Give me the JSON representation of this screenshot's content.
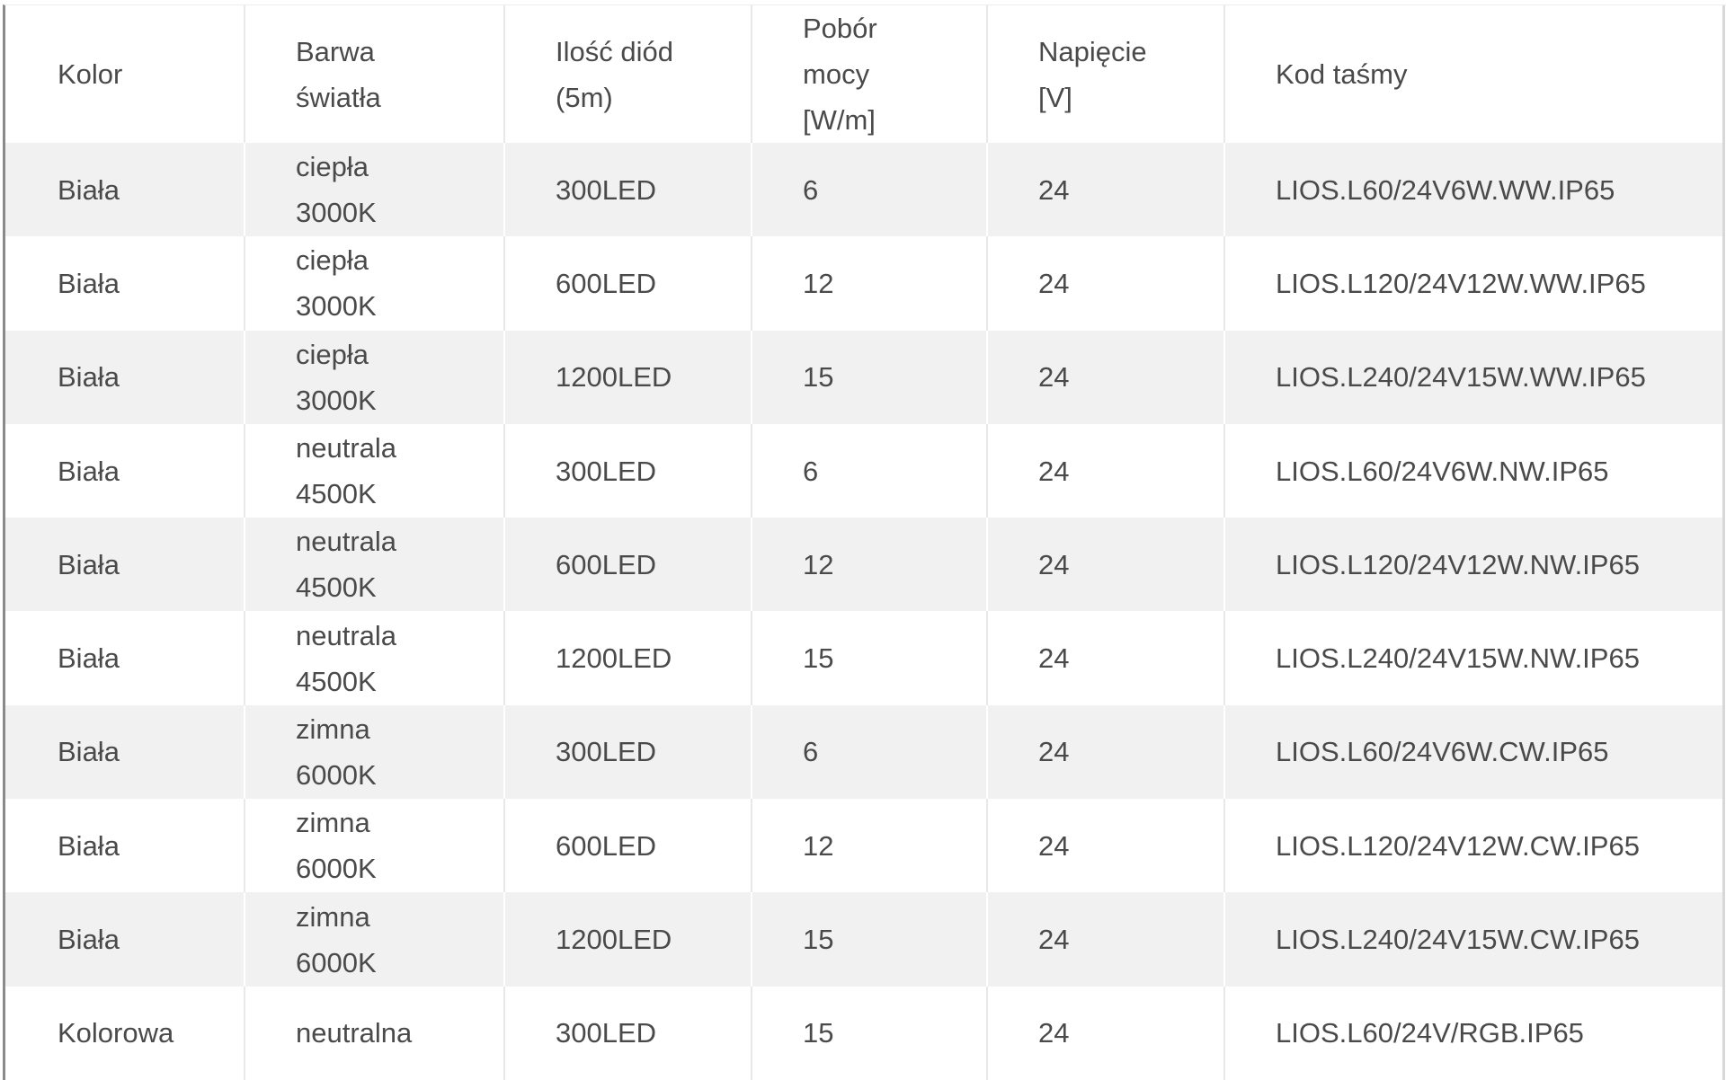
{
  "table": {
    "headers": [
      {
        "lines": [
          "Kolor"
        ]
      },
      {
        "lines": [
          "Barwa",
          "światła"
        ]
      },
      {
        "lines": [
          "Ilość diód",
          "(5m)"
        ]
      },
      {
        "lines": [
          "Pobór",
          "mocy",
          "[W/m]"
        ]
      },
      {
        "lines": [
          "Napięcie",
          "[V]"
        ]
      },
      {
        "lines": [
          "Kod taśmy"
        ]
      }
    ],
    "rows": [
      {
        "kolor": "Biała",
        "barwa": [
          "ciepła",
          "3000K"
        ],
        "diody": "300LED",
        "moc": "6",
        "napiecie": "24",
        "kod": "LIOS.L60/24V6W.WW.IP65"
      },
      {
        "kolor": "Biała",
        "barwa": [
          "ciepła",
          "3000K"
        ],
        "diody": "600LED",
        "moc": "12",
        "napiecie": "24",
        "kod": "LIOS.L120/24V12W.WW.IP65"
      },
      {
        "kolor": "Biała",
        "barwa": [
          "ciepła",
          "3000K"
        ],
        "diody": "1200LED",
        "moc": "15",
        "napiecie": "24",
        "kod": "LIOS.L240/24V15W.WW.IP65"
      },
      {
        "kolor": "Biała",
        "barwa": [
          "neutrala",
          "4500K"
        ],
        "diody": "300LED",
        "moc": "6",
        "napiecie": "24",
        "kod": "LIOS.L60/24V6W.NW.IP65"
      },
      {
        "kolor": "Biała",
        "barwa": [
          "neutrala",
          "4500K"
        ],
        "diody": "600LED",
        "moc": "12",
        "napiecie": "24",
        "kod": "LIOS.L120/24V12W.NW.IP65"
      },
      {
        "kolor": "Biała",
        "barwa": [
          "neutrala",
          "4500K"
        ],
        "diody": "1200LED",
        "moc": "15",
        "napiecie": "24",
        "kod": "LIOS.L240/24V15W.NW.IP65"
      },
      {
        "kolor": "Biała",
        "barwa": [
          "zimna",
          "6000K"
        ],
        "diody": "300LED",
        "moc": "6",
        "napiecie": "24",
        "kod": "LIOS.L60/24V6W.CW.IP65"
      },
      {
        "kolor": "Biała",
        "barwa": [
          "zimna",
          "6000K"
        ],
        "diody": "600LED",
        "moc": "12",
        "napiecie": "24",
        "kod": "LIOS.L120/24V12W.CW.IP65"
      },
      {
        "kolor": "Biała",
        "barwa": [
          "zimna",
          "6000K"
        ],
        "diody": "1200LED",
        "moc": "15",
        "napiecie": "24",
        "kod": "LIOS.L240/24V15W.CW.IP65"
      },
      {
        "kolor": "Kolorowa",
        "barwa": [
          "neutralna"
        ],
        "diody": "300LED",
        "moc": "15",
        "napiecie": "24",
        "kod": "LIOS.L60/24V/RGB.IP65"
      }
    ]
  },
  "colors": {
    "stripe": "#f1f1f1",
    "text": "#4a4a4a"
  }
}
